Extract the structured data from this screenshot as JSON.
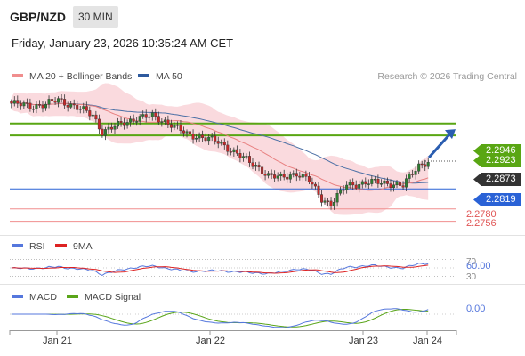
{
  "header": {
    "symbol": "GBP/NZD",
    "timeframe": "30 MIN",
    "datetime": "Friday, January 23, 2026 10:35:24 AM CET"
  },
  "legend": {
    "ma20": "MA 20 + Bollinger Bands",
    "ma50": "MA 50",
    "copyright": "Research © 2026 Trading Central"
  },
  "colors": {
    "up": "#2e7d32",
    "down": "#c62828",
    "bb": "#f8cdd3",
    "ma20": "#e88080",
    "ma50": "#4a6fa5",
    "resistance": "#59a613",
    "pivot": "#2a62d6",
    "support": "#f08e8e",
    "current": "#333333",
    "rsi": "#5577dd",
    "rsi_ma": "#dd2222",
    "macd": "#5577dd",
    "macd_signal": "#5aa51a"
  },
  "chart_data": [
    {
      "type": "candlestick",
      "ylim": [
        2.2745,
        2.302
      ],
      "levels": [
        {
          "value": 2.2946,
          "label": "2.2946",
          "kind": "resistance"
        },
        {
          "value": 2.2923,
          "label": "2.2923",
          "kind": "resistance"
        },
        {
          "value": 2.2873,
          "label": "2.2873",
          "kind": "current"
        },
        {
          "value": 2.2819,
          "label": "2.2819",
          "kind": "pivot"
        },
        {
          "value": 2.278,
          "label": "2.2780",
          "kind": "support"
        },
        {
          "value": 2.2756,
          "label": "2.2756",
          "kind": "support"
        }
      ],
      "x_ticks": [
        "Jan 21",
        "Jan 22",
        "Jan 23",
        "Jan 24"
      ],
      "forecast_arrow": {
        "from": 2.288,
        "to": 2.2935
      }
    },
    {
      "type": "line",
      "title": "RSI",
      "series": [
        {
          "name": "RSI"
        },
        {
          "name": "9MA"
        }
      ],
      "ylim": [
        20,
        80
      ],
      "ticks": [
        "70",
        "60.00",
        "30"
      ],
      "last_value": "60.00"
    },
    {
      "type": "line",
      "title": "MACD",
      "series": [
        {
          "name": "MACD"
        },
        {
          "name": "MACD Signal"
        }
      ],
      "last_value": "0.00"
    }
  ]
}
